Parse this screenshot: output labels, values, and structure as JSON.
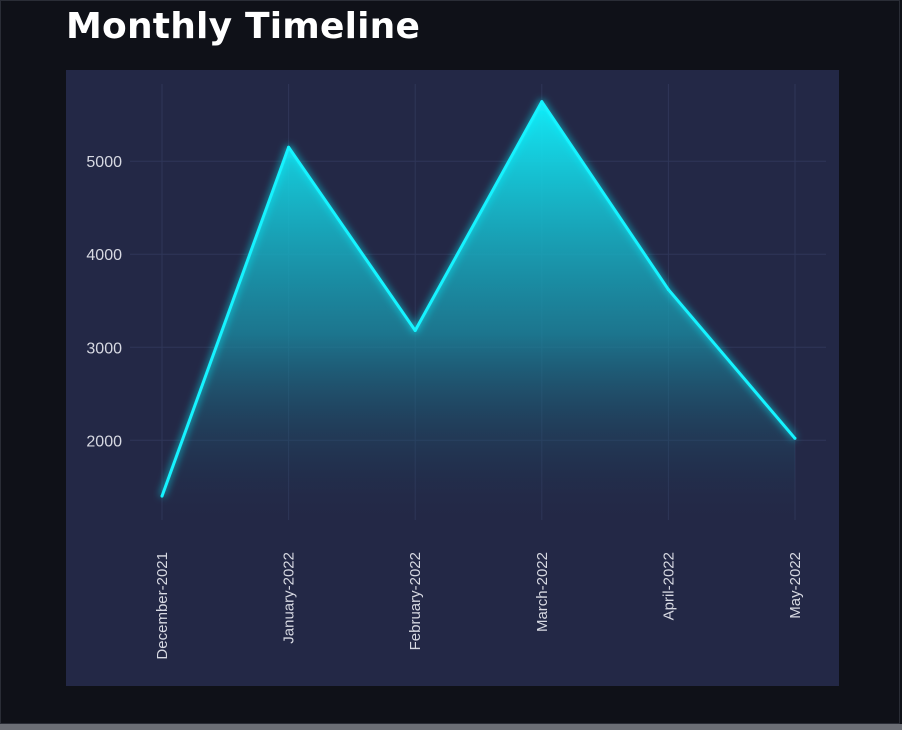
{
  "page": {
    "title": "Monthly Timeline"
  },
  "colors": {
    "background": "#0f1118",
    "panel": "#232846",
    "line": "#12f3ff",
    "grid": "#2f3658",
    "text": "#d7d9e2"
  },
  "chart_data": {
    "type": "area",
    "title": "Monthly Timeline",
    "xlabel": "",
    "ylabel": "",
    "x": [
      "December-2021",
      "January-2022",
      "February-2022",
      "March-2022",
      "April-2022",
      "May-2022"
    ],
    "series": [
      {
        "values": [
          1400,
          5150,
          3180,
          5640,
          3620,
          2020
        ]
      }
    ],
    "yticks": [
      2000,
      3000,
      4000,
      5000
    ],
    "ylim": [
      1100,
      5830
    ],
    "grid": true,
    "legend": "none"
  }
}
